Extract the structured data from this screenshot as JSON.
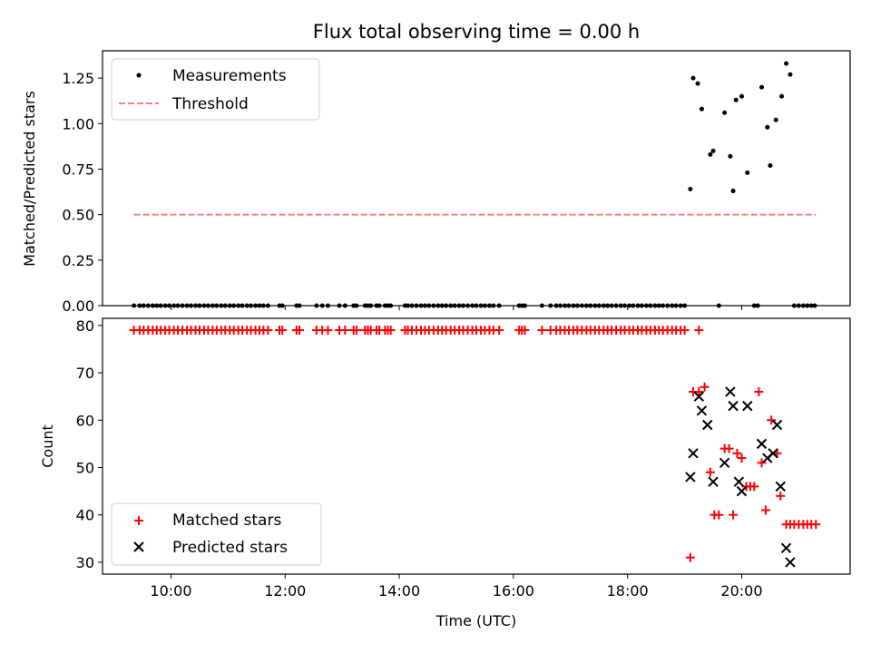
{
  "chart_data": [
    {
      "type": "scatter",
      "title": "Flux total observing time = 0.00 h",
      "xlabel": "",
      "ylabel": "Matched/Predicted stars",
      "xlim": [
        8.8,
        21.9
      ],
      "ylim": [
        0.0,
        1.4
      ],
      "yticks": [
        0.0,
        0.25,
        0.5,
        0.75,
        1.0,
        1.25
      ],
      "ytick_labels": [
        "0.00",
        "0.25",
        "0.50",
        "0.75",
        "1.00",
        "1.25"
      ],
      "legend": [
        "Measurements",
        "Threshold"
      ],
      "legend_position": "upper-left",
      "series": [
        {
          "name": "Measurements",
          "zero_x": [
            9.35,
            9.45,
            9.52,
            9.6,
            9.68,
            9.75,
            9.82,
            9.9,
            9.97,
            10.05,
            10.12,
            10.2,
            10.28,
            10.35,
            10.43,
            10.5,
            10.58,
            10.65,
            10.73,
            10.8,
            10.88,
            10.95,
            11.03,
            11.1,
            11.18,
            11.25,
            11.33,
            11.4,
            11.48,
            11.55,
            11.62,
            11.7,
            11.9,
            11.95,
            12.2,
            12.25,
            12.55,
            12.65,
            12.75,
            12.95,
            13.05,
            13.2,
            13.25,
            13.4,
            13.45,
            13.5,
            13.6,
            13.65,
            13.75,
            13.8,
            13.85,
            14.1,
            14.15,
            14.22,
            14.3,
            14.38,
            14.45,
            14.52,
            14.6,
            14.68,
            14.75,
            14.82,
            14.9,
            14.97,
            15.05,
            15.12,
            15.2,
            15.28,
            15.35,
            15.43,
            15.5,
            15.58,
            15.65,
            15.75,
            16.1,
            16.15,
            16.2,
            16.5,
            16.65,
            16.75,
            16.82,
            16.9,
            16.97,
            17.05,
            17.12,
            17.2,
            17.28,
            17.35,
            17.43,
            17.5,
            17.58,
            17.65,
            17.72,
            17.8,
            17.88,
            17.95,
            18.03,
            18.1,
            18.18,
            18.25,
            18.33,
            18.4,
            18.48,
            18.55,
            18.62,
            18.7,
            18.78,
            18.85,
            18.93,
            19.0,
            19.6,
            20.22,
            20.28,
            20.92,
            21.0,
            21.08,
            21.15,
            21.22,
            21.28
          ],
          "x": [
            19.1,
            19.15,
            19.23,
            19.3,
            19.45,
            19.5,
            19.7,
            19.8,
            19.85,
            19.9,
            20.0,
            20.1,
            20.35,
            20.45,
            20.5,
            20.6,
            20.7,
            20.78,
            20.85
          ],
          "y": [
            0.64,
            1.25,
            1.22,
            1.08,
            0.83,
            0.85,
            1.06,
            0.82,
            0.63,
            1.13,
            1.15,
            0.73,
            1.2,
            0.98,
            0.77,
            1.02,
            1.15,
            1.33,
            1.27
          ]
        },
        {
          "name": "Threshold",
          "x": [
            9.35,
            21.3
          ],
          "y": [
            0.5,
            0.5
          ]
        }
      ]
    },
    {
      "type": "scatter",
      "title": "",
      "xlabel": "Time (UTC)",
      "ylabel": "Count",
      "xlim": [
        8.8,
        21.9
      ],
      "ylim": [
        27.5,
        81.5
      ],
      "yticks": [
        30,
        40,
        50,
        60,
        70,
        80
      ],
      "ytick_labels": [
        "30",
        "40",
        "50",
        "60",
        "70",
        "80"
      ],
      "xticks": [
        10,
        12,
        14,
        16,
        18,
        20
      ],
      "xtick_labels": [
        "10:00",
        "12:00",
        "14:00",
        "16:00",
        "18:00",
        "20:00"
      ],
      "legend": [
        "Matched stars",
        "Predicted stars"
      ],
      "legend_position": "lower-left",
      "series": [
        {
          "name": "Matched stars",
          "x_const79": [
            9.35,
            9.45,
            9.52,
            9.6,
            9.68,
            9.75,
            9.82,
            9.9,
            9.97,
            10.05,
            10.12,
            10.2,
            10.28,
            10.35,
            10.43,
            10.5,
            10.58,
            10.65,
            10.73,
            10.8,
            10.88,
            10.95,
            11.03,
            11.1,
            11.18,
            11.25,
            11.33,
            11.4,
            11.48,
            11.55,
            11.62,
            11.7,
            11.9,
            11.95,
            12.2,
            12.25,
            12.55,
            12.65,
            12.75,
            12.95,
            13.05,
            13.2,
            13.25,
            13.4,
            13.45,
            13.5,
            13.6,
            13.65,
            13.75,
            13.8,
            13.85,
            14.1,
            14.15,
            14.22,
            14.3,
            14.38,
            14.45,
            14.52,
            14.6,
            14.68,
            14.75,
            14.82,
            14.9,
            14.97,
            15.05,
            15.12,
            15.2,
            15.28,
            15.35,
            15.43,
            15.5,
            15.58,
            15.65,
            15.75,
            16.1,
            16.15,
            16.2,
            16.5,
            16.65,
            16.75,
            16.82,
            16.9,
            16.97,
            17.05,
            17.12,
            17.2,
            17.28,
            17.35,
            17.43,
            17.5,
            17.58,
            17.65,
            17.72,
            17.8,
            17.88,
            17.95,
            18.03,
            18.1,
            18.18,
            18.25,
            18.33,
            18.4,
            18.48,
            18.55,
            18.62,
            18.7,
            18.78,
            18.85,
            18.93,
            19.0,
            19.25
          ],
          "x": [
            19.1,
            19.15,
            19.25,
            19.35,
            19.45,
            19.52,
            19.6,
            19.7,
            19.78,
            19.85,
            19.92,
            20.0,
            20.08,
            20.15,
            20.22,
            20.3,
            20.35,
            20.42,
            20.52,
            20.62,
            20.68,
            20.78,
            20.85,
            20.92,
            21.0,
            21.08,
            21.15,
            21.22,
            21.3
          ],
          "y": [
            31,
            66,
            66,
            67,
            49,
            40,
            40,
            54,
            54,
            40,
            53,
            52,
            46,
            46,
            46,
            66,
            51,
            41,
            60,
            53,
            44,
            38,
            38,
            38,
            38,
            38,
            38,
            38,
            38
          ]
        },
        {
          "name": "Predicted stars",
          "x": [
            19.1,
            19.15,
            19.25,
            19.3,
            19.4,
            19.5,
            19.7,
            19.8,
            19.85,
            19.95,
            20.0,
            20.1,
            20.35,
            20.45,
            20.55,
            20.62,
            20.68,
            20.78,
            20.85
          ],
          "y": [
            48,
            53,
            65,
            62,
            59,
            47,
            51,
            66,
            63,
            47,
            45,
            63,
            55,
            52,
            53,
            59,
            46,
            33,
            30
          ]
        }
      ]
    }
  ]
}
